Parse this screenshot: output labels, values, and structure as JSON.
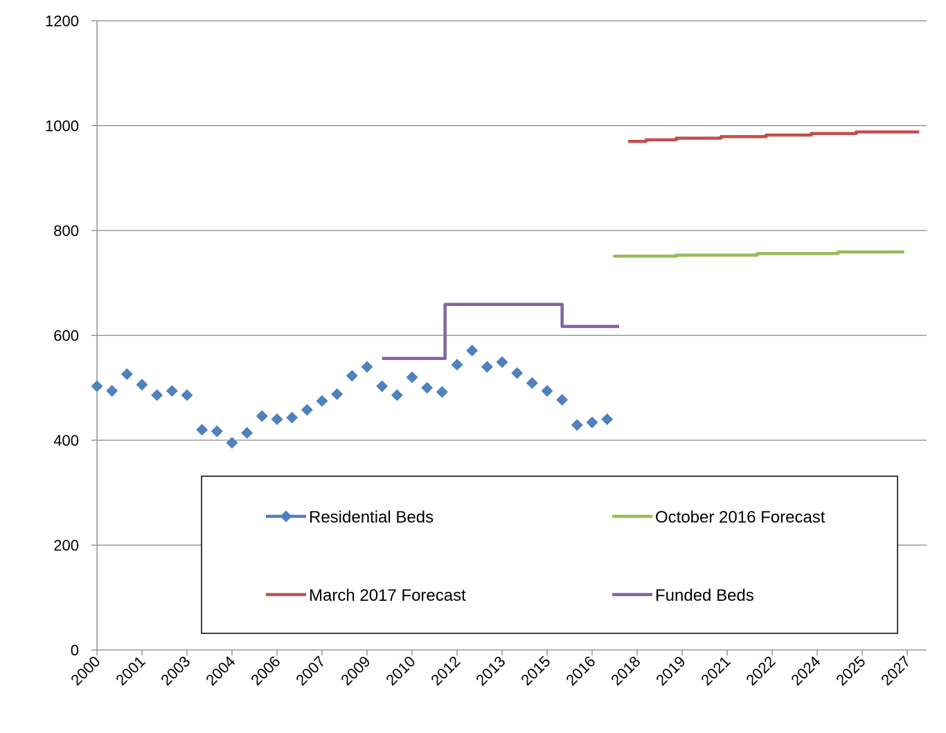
{
  "chart_data": {
    "type": "line",
    "title": "",
    "xlabel": "",
    "ylabel": "",
    "ylim": [
      0,
      1200
    ],
    "yticks": [
      0,
      200,
      400,
      600,
      800,
      1000,
      1200
    ],
    "xtick_labels": [
      "2000",
      "2001",
      "2003",
      "2004",
      "2006",
      "2007",
      "2009",
      "2010",
      "2012",
      "2013",
      "2015",
      "2016",
      "2018",
      "2019",
      "2021",
      "2022",
      "2024",
      "2025",
      "2027"
    ],
    "xlim": [
      2000,
      2027.4
    ],
    "grid": "horizontal",
    "legend_position": "bottom-center",
    "series": [
      {
        "name": "Residential Beds",
        "style": "markers",
        "color": "#4F81BD",
        "x": [
          2000.0,
          2000.5,
          2001.0,
          2001.5,
          2002.0,
          2002.5,
          2003.0,
          2003.5,
          2004.0,
          2004.5,
          2005.0,
          2005.5,
          2006.0,
          2006.5,
          2007.0,
          2007.5,
          2008.0,
          2008.5,
          2009.0,
          2009.5,
          2010.0,
          2010.5,
          2011.0,
          2011.5,
          2012.0,
          2012.5,
          2013.0,
          2013.5,
          2014.0,
          2014.5,
          2015.0,
          2015.5,
          2016.0,
          2016.5,
          2017.0
        ],
        "y": [
          503,
          494,
          526,
          506,
          486,
          494,
          486,
          420,
          417,
          395,
          414,
          446,
          440,
          443,
          458,
          475,
          488,
          523,
          540,
          503,
          486,
          520,
          500,
          492,
          544,
          571,
          540,
          549,
          528,
          509,
          494,
          477,
          429,
          434,
          440
        ]
      },
      {
        "name": "October 2016 Forecast",
        "style": "line",
        "color": "#9BBB59",
        "x": [
          2017.2,
          2019.3,
          2019.3,
          2022.0,
          2022.0,
          2024.7,
          2024.7,
          2026.9
        ],
        "y": [
          751,
          751,
          753,
          753,
          756,
          756,
          759,
          759
        ]
      },
      {
        "name": "March 2017 Forecast",
        "style": "line",
        "color": "#C0504D",
        "x": [
          2017.7,
          2018.3,
          2018.3,
          2019.3,
          2019.3,
          2020.8,
          2020.8,
          2022.3,
          2022.3,
          2023.8,
          2023.8,
          2025.3,
          2025.3,
          2027.4
        ],
        "y": [
          970,
          970,
          973,
          973,
          976,
          976,
          979,
          979,
          982,
          982,
          985,
          985,
          988,
          988
        ]
      },
      {
        "name": "Funded Beds",
        "style": "line",
        "color": "#8064A2",
        "x": [
          2009.5,
          2011.6,
          2011.6,
          2015.5,
          2015.5,
          2017.4
        ],
        "y": [
          556,
          556,
          659,
          659,
          617,
          617
        ]
      }
    ]
  }
}
